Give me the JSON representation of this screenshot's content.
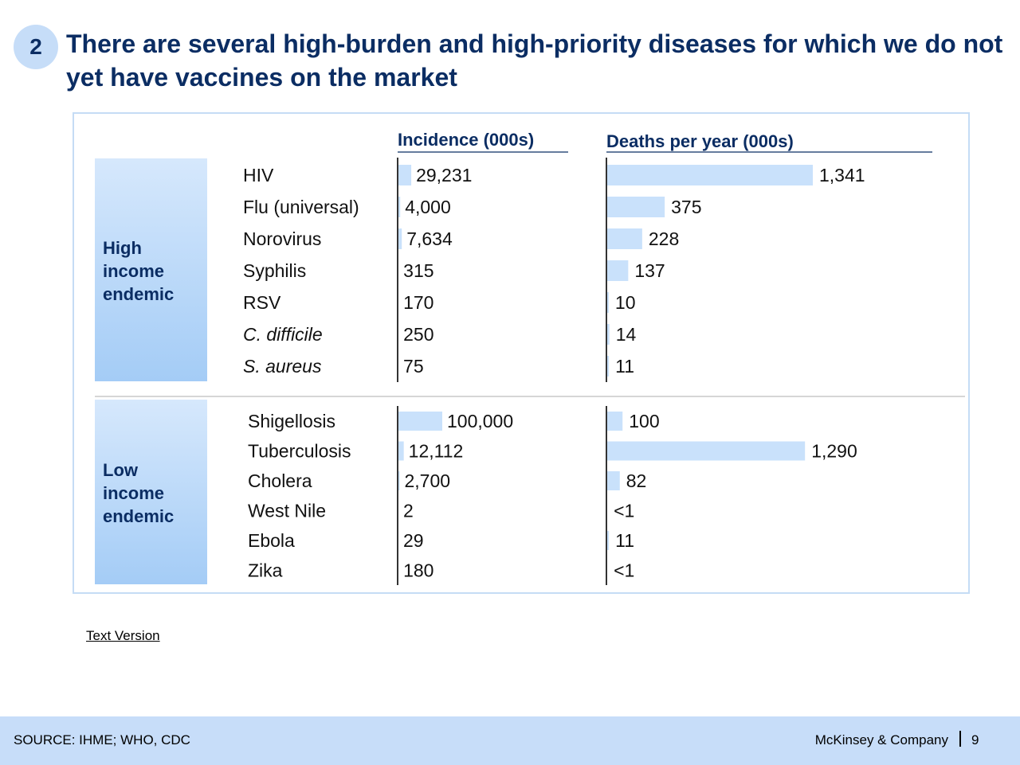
{
  "slide": {
    "badge": "2",
    "title": "There are several high-burden and high-priority diseases for which we do not yet have vaccines on the market",
    "link_label": "Text Version ",
    "source": "SOURCE: IHME; WHO, CDC",
    "brand": "McKinsey & Company",
    "page": "9"
  },
  "colors": {
    "bar": "#c9e1fb",
    "navy": "#0b2d63",
    "frame": "#c5dcf5"
  },
  "chart_data": {
    "type": "bar",
    "columns": [
      "Incidence (000s)",
      "Deaths per year (000s)"
    ],
    "groups": [
      {
        "label": "High income endemic",
        "rows": [
          {
            "disease": "HIV",
            "italic": false,
            "incidence": 29231,
            "incidence_label": "29,231",
            "deaths": 1341,
            "deaths_label": "1,341"
          },
          {
            "disease": "Flu (universal)",
            "italic": false,
            "incidence": 4000,
            "incidence_label": "4,000",
            "deaths": 375,
            "deaths_label": "375"
          },
          {
            "disease": "Norovirus",
            "italic": false,
            "incidence": 7634,
            "incidence_label": "7,634",
            "deaths": 228,
            "deaths_label": "228"
          },
          {
            "disease": "Syphilis",
            "italic": false,
            "incidence": 315,
            "incidence_label": "315",
            "deaths": 137,
            "deaths_label": "137"
          },
          {
            "disease": "RSV",
            "italic": false,
            "incidence": 170,
            "incidence_label": "170",
            "deaths": 10,
            "deaths_label": "10"
          },
          {
            "disease": "C. difficile",
            "italic": true,
            "incidence": 250,
            "incidence_label": "250",
            "deaths": 14,
            "deaths_label": "14"
          },
          {
            "disease": "S. aureus",
            "italic": true,
            "incidence": 75,
            "incidence_label": "75",
            "deaths": 11,
            "deaths_label": "11"
          }
        ]
      },
      {
        "label": "Low income endemic",
        "rows": [
          {
            "disease": "Shigellosis",
            "italic": false,
            "incidence": 100000,
            "incidence_label": "100,000",
            "deaths": 100,
            "deaths_label": "100"
          },
          {
            "disease": "Tuberculosis",
            "italic": false,
            "incidence": 12112,
            "incidence_label": "12,112",
            "deaths": 1290,
            "deaths_label": "1,290"
          },
          {
            "disease": "Cholera",
            "italic": false,
            "incidence": 2700,
            "incidence_label": "2,700",
            "deaths": 82,
            "deaths_label": "82"
          },
          {
            "disease": "West Nile",
            "italic": false,
            "incidence": 2,
            "incidence_label": "2",
            "deaths": 0.5,
            "deaths_label": "<1"
          },
          {
            "disease": "Ebola",
            "italic": false,
            "incidence": 29,
            "incidence_label": "29",
            "deaths": 11,
            "deaths_label": "11"
          },
          {
            "disease": "Zika",
            "italic": false,
            "incidence": 180,
            "incidence_label": "180",
            "deaths": 0.5,
            "deaths_label": "<1"
          }
        ]
      }
    ]
  }
}
